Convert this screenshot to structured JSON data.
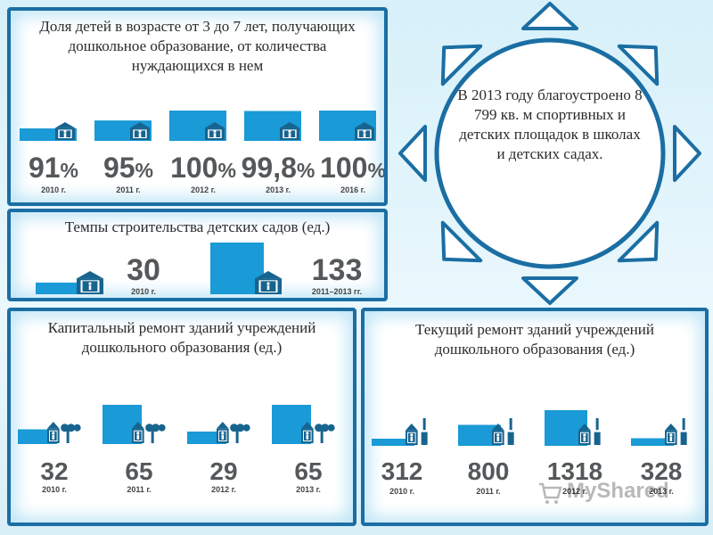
{
  "panel1": {
    "title": "Доля детей в возрасте от 3 до 7 лет, получающих дошкольное образование, от количества нуждающихся в нем"
  },
  "panel2": {
    "title": "Темпы строительства детских садов (ед.)"
  },
  "panel3": {
    "title": "Капитальный ремонт зданий учреждений дошкольного образования (ед.)"
  },
  "panel4": {
    "title": "Текущий ремонт зданий учреждений дошкольного образования (ед.)"
  },
  "sun": {
    "text": "В 2013 году благоустроено 8 799 кв. м спортивных и детских площадок в школах и детских садах."
  },
  "watermark": {
    "text": "MyShared"
  },
  "colors": {
    "bar": "#1a9ad6",
    "icon": "#17648f",
    "border": "#1b6ea3",
    "number": "#55585a",
    "year": "#444444"
  },
  "chart_data": [
    {
      "type": "bar",
      "title": "Доля детей в возрасте от 3 до 7 лет, получающих дошкольное образование, от количества нуждающихся в нем",
      "categories": [
        "2010 г.",
        "2011 г.",
        "2012 г.",
        "2013 г.",
        "2016 г."
      ],
      "values": [
        91,
        95,
        100,
        99.8,
        100
      ],
      "value_labels": [
        "91",
        "95",
        "100",
        "99,8",
        "100"
      ],
      "unit": "%",
      "icon": "kindergarten-icon"
    },
    {
      "type": "bar",
      "title": "Темпы строительства детских садов (ед.)",
      "categories": [
        "2010 г.",
        "2011–2013 гг."
      ],
      "values": [
        30,
        133
      ],
      "value_labels": [
        "30",
        "133"
      ],
      "icon": "kindergarten-icon"
    },
    {
      "type": "bar",
      "title": "Капитальный ремонт зданий учреждений дошкольного образования (ед.)",
      "categories": [
        "2010 г.",
        "2011 г.",
        "2012 г.",
        "2013 г."
      ],
      "values": [
        32,
        65,
        29,
        65
      ],
      "value_labels": [
        "32",
        "65",
        "29",
        "65"
      ],
      "icon": "kindergarten-with-trees-icon"
    },
    {
      "type": "bar",
      "title": "Текущий ремонт зданий учреждений дошкольного образования (ед.)",
      "categories": [
        "2010 г.",
        "2011 г.",
        "2012 г.",
        "2013 г."
      ],
      "values": [
        312,
        800,
        1318,
        328
      ],
      "value_labels": [
        "312",
        "800",
        "1318",
        "328"
      ],
      "icon": "kindergarten-with-paintbrush-icon"
    }
  ]
}
